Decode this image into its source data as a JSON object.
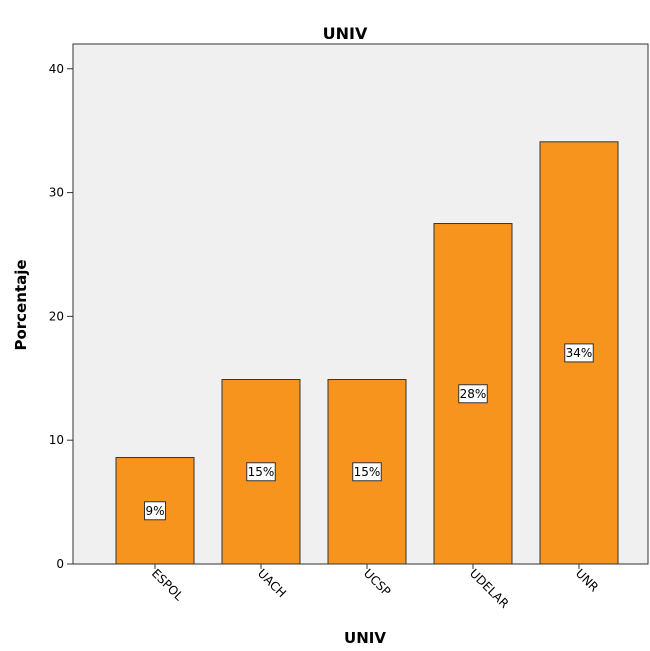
{
  "chart_data": {
    "type": "bar",
    "title": "UNIV",
    "xlabel": "UNIV",
    "ylabel": "Porcentaje",
    "categories": [
      "ESPOL",
      "UACH",
      "UCSP",
      "UDELAR",
      "UNR"
    ],
    "values": [
      8.6,
      14.9,
      14.9,
      27.5,
      34.1
    ],
    "data_labels": [
      "9%",
      "15%",
      "15%",
      "28%",
      "34%"
    ],
    "ylim": [
      0,
      42
    ],
    "yticks": [
      0,
      10,
      20,
      30,
      40
    ],
    "ytick_labels": [
      "0",
      "10",
      "20",
      "30",
      "40"
    ],
    "grid": false,
    "legend": "none",
    "colors": {
      "bar": "#F7941D",
      "bar_stroke": "#333333",
      "plot_background": "#F0F0F0",
      "axis": "#333333"
    }
  }
}
